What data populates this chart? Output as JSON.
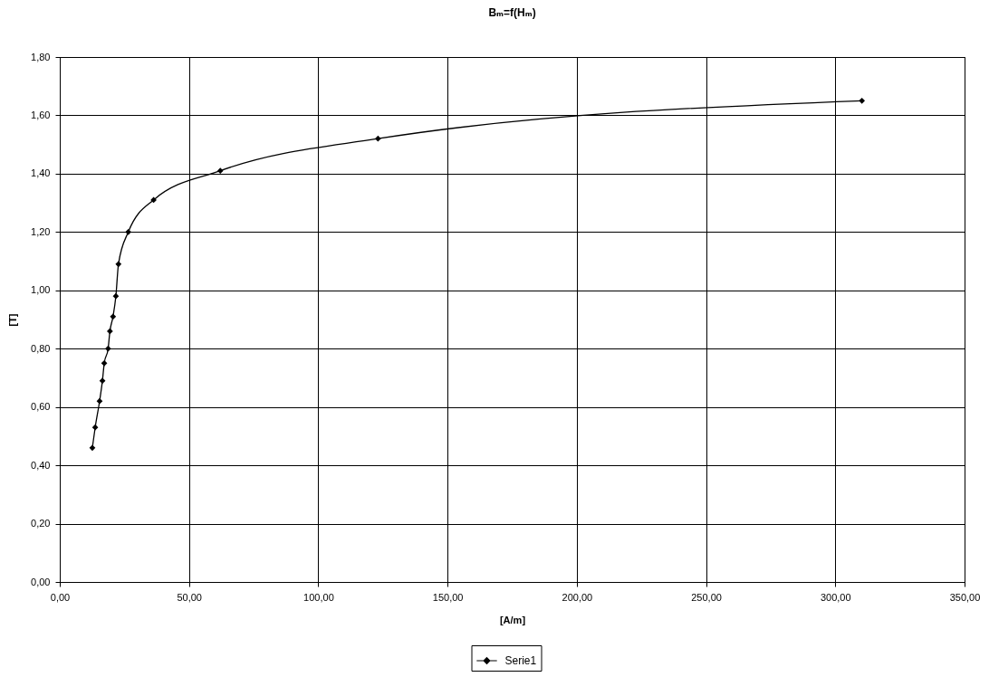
{
  "chart_data": {
    "type": "line",
    "title": "Bₘ=f(Hₘ)",
    "xlabel": "[A/m]",
    "ylabel": "[T]",
    "x": [
      12.6,
      13.7,
      15.4,
      16.5,
      17.2,
      18.7,
      19.4,
      20.6,
      21.7,
      22.7,
      26.5,
      36.3,
      62.1,
      123.1,
      310.3
    ],
    "series": [
      {
        "name": "Serie1",
        "color": "#000000",
        "values": [
          0.46,
          0.53,
          0.62,
          0.69,
          0.75,
          0.8,
          0.86,
          0.91,
          0.98,
          1.09,
          1.2,
          1.31,
          1.41,
          1.52,
          1.65
        ]
      }
    ],
    "xlim": [
      0,
      350
    ],
    "ylim": [
      0,
      1.8
    ],
    "xticks": [
      {
        "value": 0,
        "label": "0,00"
      },
      {
        "value": 50,
        "label": "50,00"
      },
      {
        "value": 100,
        "label": "100,00"
      },
      {
        "value": 150,
        "label": "150,00"
      },
      {
        "value": 200,
        "label": "200,00"
      },
      {
        "value": 250,
        "label": "250,00"
      },
      {
        "value": 300,
        "label": "300,00"
      },
      {
        "value": 350,
        "label": "350,00"
      }
    ],
    "yticks": [
      {
        "value": 0,
        "label": "0,00"
      },
      {
        "value": 0.2,
        "label": "0,20"
      },
      {
        "value": 0.4,
        "label": "0,40"
      },
      {
        "value": 0.6,
        "label": "0,60"
      },
      {
        "value": 0.8,
        "label": "0,80"
      },
      {
        "value": 1,
        "label": "1,00"
      },
      {
        "value": 1.2,
        "label": "1,20"
      },
      {
        "value": 1.4,
        "label": "1,40"
      },
      {
        "value": 1.6,
        "label": "1,60"
      },
      {
        "value": 1.8,
        "label": "1,80"
      }
    ],
    "grid": true,
    "legend": "bottom",
    "marker": "diamond",
    "line_style": "solid"
  }
}
